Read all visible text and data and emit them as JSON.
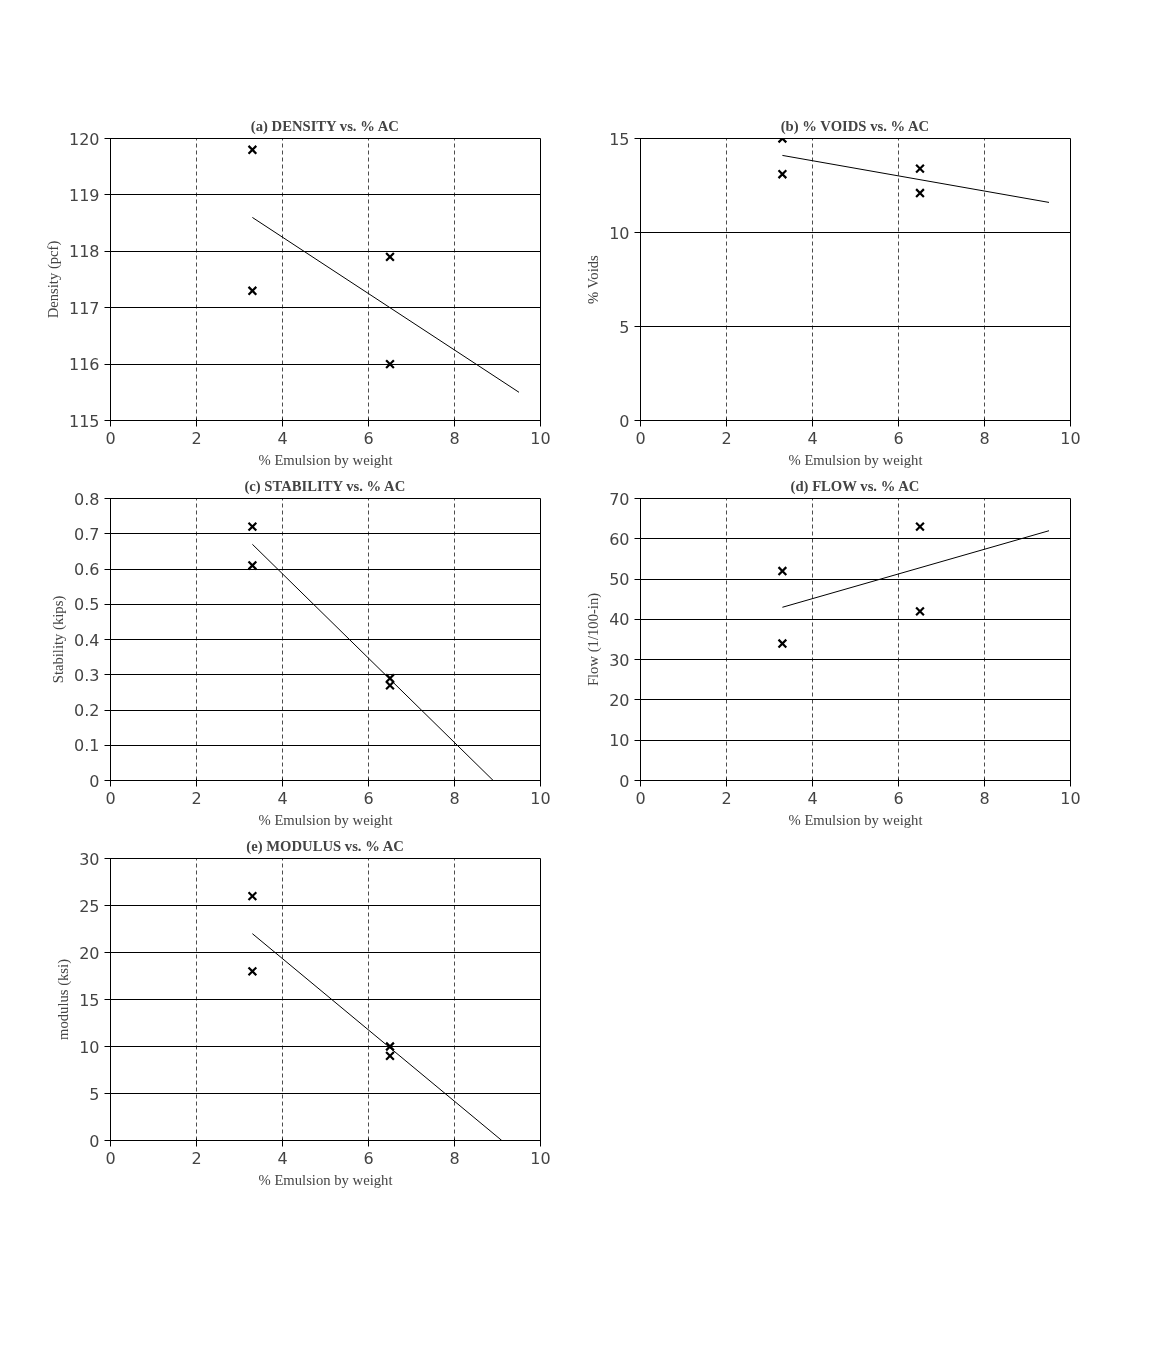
{
  "chart_data": [
    {
      "type": "scatter",
      "title": "(a) DENSITY vs. % AC",
      "xlabel": "% Emulsion by weight",
      "ylabel": "Density (pcf)",
      "xlim": [
        0,
        10
      ],
      "xticks": [
        0,
        2,
        4,
        6,
        8,
        10
      ],
      "ylim": [
        115,
        120
      ],
      "yticks": [
        115,
        116,
        117,
        118,
        119,
        120
      ],
      "grid": true,
      "series": [
        {
          "marker": "cross",
          "color": "#000000",
          "x": [
            3.3,
            3.3,
            6.5,
            6.5
          ],
          "values": [
            119.8,
            117.3,
            117.9,
            116.0
          ]
        },
        {
          "type": "line",
          "marker": "none",
          "color": "#000000",
          "x": [
            3.3,
            9.5
          ],
          "values": [
            118.6,
            115.5
          ]
        }
      ]
    },
    {
      "type": "scatter",
      "title": "(b) % VOIDS vs. % AC",
      "xlabel": "% Emulsion by weight",
      "ylabel": "% Voids",
      "xlim": [
        0,
        10
      ],
      "xticks": [
        0,
        2,
        4,
        6,
        8,
        10
      ],
      "ylim": [
        0,
        15
      ],
      "yticks": [
        0,
        5,
        10,
        15
      ],
      "grid": true,
      "series": [
        {
          "marker": "cross",
          "color": "#000000",
          "x": [
            3.3,
            3.3,
            6.5,
            6.5
          ],
          "values": [
            15.0,
            13.1,
            13.4,
            12.1
          ]
        },
        {
          "type": "line",
          "marker": "none",
          "color": "#000000",
          "x": [
            3.3,
            9.5
          ],
          "values": [
            14.1,
            11.6
          ]
        }
      ]
    },
    {
      "type": "scatter",
      "title": "(c) STABILITY vs. % AC",
      "xlabel": "% Emulsion by weight",
      "ylabel": "Stability (kips)",
      "xlim": [
        0,
        10
      ],
      "xticks": [
        0,
        2,
        4,
        6,
        8,
        10
      ],
      "ylim": [
        0,
        0.8
      ],
      "yticks": [
        0,
        0.1,
        0.2,
        0.3,
        0.4,
        0.5,
        0.6,
        0.7,
        0.8
      ],
      "grid": true,
      "series": [
        {
          "marker": "cross",
          "color": "#000000",
          "x": [
            3.3,
            3.3,
            6.5,
            6.5
          ],
          "values": [
            0.72,
            0.61,
            0.29,
            0.27
          ]
        },
        {
          "type": "line",
          "marker": "none",
          "color": "#000000",
          "x": [
            3.3,
            8.9
          ],
          "values": [
            0.67,
            0.0
          ]
        }
      ]
    },
    {
      "type": "scatter",
      "title": "(d) FLOW vs. % AC",
      "xlabel": "% Emulsion by weight",
      "ylabel": "Flow (1/100-in)",
      "xlim": [
        0,
        10
      ],
      "xticks": [
        0,
        2,
        4,
        6,
        8,
        10
      ],
      "ylim": [
        0,
        70
      ],
      "yticks": [
        0,
        10,
        20,
        30,
        40,
        50,
        60,
        70
      ],
      "grid": true,
      "series": [
        {
          "marker": "cross",
          "color": "#000000",
          "x": [
            3.3,
            3.3,
            6.5,
            6.5
          ],
          "values": [
            52,
            34,
            63,
            42
          ]
        },
        {
          "type": "line",
          "marker": "none",
          "color": "#000000",
          "x": [
            3.3,
            9.5
          ],
          "values": [
            43,
            62
          ]
        }
      ]
    },
    {
      "type": "scatter",
      "title": "(e) MODULUS vs. % AC",
      "xlabel": "% Emulsion by weight",
      "ylabel": "modulus (ksi)",
      "xlim": [
        0,
        10
      ],
      "xticks": [
        0,
        2,
        4,
        6,
        8,
        10
      ],
      "ylim": [
        0,
        30
      ],
      "yticks": [
        0,
        5,
        10,
        15,
        20,
        25,
        30
      ],
      "grid": true,
      "series": [
        {
          "marker": "cross",
          "color": "#000000",
          "x": [
            3.3,
            3.3,
            6.5,
            6.5
          ],
          "values": [
            26,
            18,
            10,
            9
          ]
        },
        {
          "type": "line",
          "marker": "none",
          "color": "#000000",
          "x": [
            3.3,
            9.1
          ],
          "values": [
            22,
            0
          ]
        }
      ]
    }
  ]
}
